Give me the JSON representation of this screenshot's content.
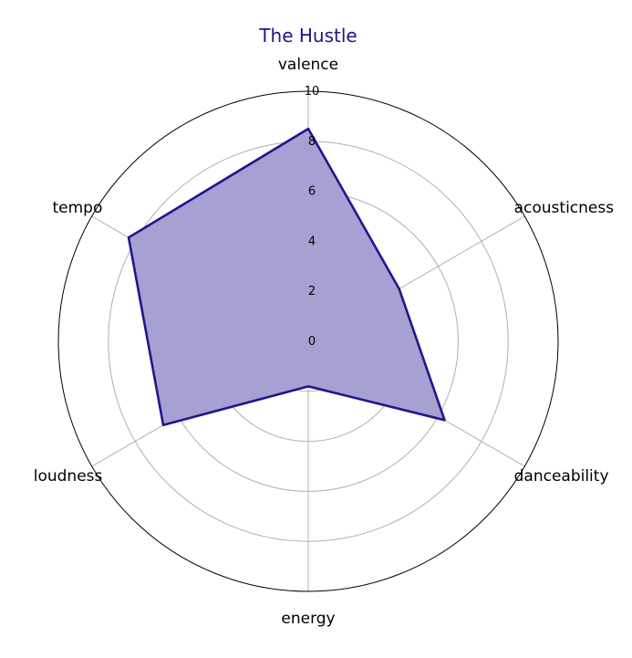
{
  "chart_data": {
    "type": "radar",
    "title": "The Hustle",
    "axes": [
      "valence",
      "acousticness",
      "danceability",
      "energy",
      "loudness",
      "tempo"
    ],
    "series": [
      {
        "values": [
          8.5,
          4.2,
          6.3,
          1.8,
          6.7,
          8.3
        ]
      }
    ],
    "rlim": [
      0,
      10
    ],
    "rticks": [
      0,
      2,
      4,
      6,
      8,
      10
    ],
    "grid": true,
    "colors": {
      "title": "#22148a",
      "line": "#22168c",
      "fill": "#a7a0d2",
      "grid": "#b0b0b0",
      "frame": "#000000"
    }
  }
}
